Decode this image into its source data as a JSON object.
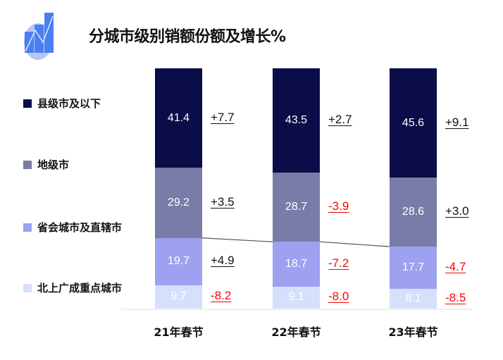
{
  "title": "分城市级别销额份额及增长%",
  "icon": "growth-chart-icon",
  "chart_data": {
    "type": "bar",
    "stacked": true,
    "title": "分城市级别销额份额及增长%",
    "categories": [
      "21年春节",
      "22年春节",
      "23年春节"
    ],
    "ylim": [
      0,
      100
    ],
    "series": [
      {
        "name": "北上广成重点城市",
        "color": "#d6e0fb",
        "label_color": "#ffffff",
        "values": [
          9.7,
          9.1,
          8.1
        ],
        "value_labels": [
          "9.7",
          "9.1",
          "8.1"
        ],
        "growth": [
          "-8.2",
          "-8.0",
          "-8.5"
        ]
      },
      {
        "name": "省会城市及直辖市",
        "color": "#9ea1f0",
        "label_color": "#ffffff",
        "values": [
          19.7,
          18.7,
          17.7
        ],
        "value_labels": [
          "19.7",
          "18.7",
          "17.7"
        ],
        "growth": [
          "+4.9",
          "-7.2",
          "-4.7"
        ]
      },
      {
        "name": "地级市",
        "color": "#797ca6",
        "label_color": "#ffffff",
        "values": [
          29.2,
          28.7,
          28.6
        ],
        "value_labels": [
          "29.2",
          "28.7",
          "28.6"
        ],
        "growth": [
          "+3.5",
          "-3.9",
          "+3.0"
        ]
      },
      {
        "name": "县级市及以下",
        "color": "#0a0d47",
        "label_color": "#ffffff",
        "values": [
          41.4,
          43.5,
          45.6
        ],
        "value_labels": [
          "41.4",
          "43.5",
          "45.6"
        ],
        "growth": [
          "+7.7",
          "+2.7",
          "+9.1"
        ]
      }
    ],
    "positive_color": "#111111",
    "negative_color": "#ff0000",
    "legend_position": "left"
  }
}
